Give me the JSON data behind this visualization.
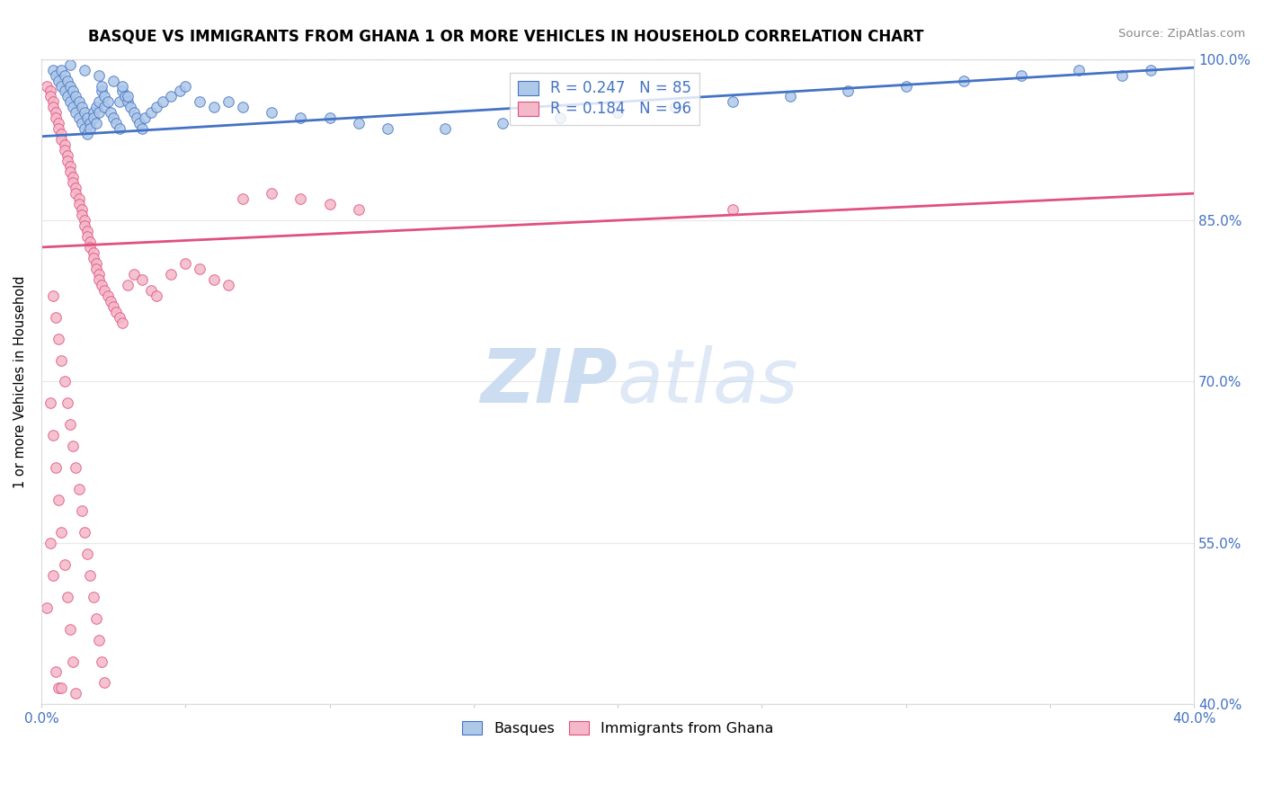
{
  "title": "BASQUE VS IMMIGRANTS FROM GHANA 1 OR MORE VEHICLES IN HOUSEHOLD CORRELATION CHART",
  "source": "Source: ZipAtlas.com",
  "ylabel": "1 or more Vehicles in Household",
  "xlim": [
    0.0,
    0.4
  ],
  "ylim": [
    0.4,
    1.0
  ],
  "xtick_vals": [
    0.0,
    0.05,
    0.1,
    0.15,
    0.2,
    0.25,
    0.3,
    0.35,
    0.4
  ],
  "xtick_labels": [
    "0.0%",
    "",
    "",
    "",
    "",
    "",
    "",
    "",
    "40.0%"
  ],
  "ytick_vals": [
    0.4,
    0.55,
    0.7,
    0.85,
    1.0
  ],
  "ytick_labels": [
    "40.0%",
    "55.0%",
    "70.0%",
    "85.0%",
    "100.0%"
  ],
  "blue_face_color": "#aec8e8",
  "blue_edge_color": "#4472C4",
  "pink_face_color": "#f4b8c8",
  "pink_edge_color": "#e05080",
  "blue_line_color": "#4472C4",
  "pink_line_color": "#e05080",
  "tick_color": "#4472C4",
  "grid_color": "#e8e8e8",
  "watermark_color": "#c8daf0",
  "legend_r1": "R = 0.247",
  "legend_n1": "N = 85",
  "legend_r2": "R = 0.184",
  "legend_n2": "N = 96",
  "blue_trend": [
    0.0,
    0.928,
    0.4,
    0.992
  ],
  "pink_trend": [
    0.0,
    0.825,
    0.4,
    0.875
  ],
  "blue_x": [
    0.004,
    0.005,
    0.006,
    0.007,
    0.007,
    0.008,
    0.008,
    0.009,
    0.009,
    0.01,
    0.01,
    0.011,
    0.011,
    0.012,
    0.012,
    0.013,
    0.013,
    0.014,
    0.014,
    0.015,
    0.015,
    0.016,
    0.016,
    0.017,
    0.017,
    0.018,
    0.018,
    0.019,
    0.019,
    0.02,
    0.02,
    0.021,
    0.021,
    0.022,
    0.022,
    0.023,
    0.024,
    0.025,
    0.026,
    0.027,
    0.027,
    0.028,
    0.028,
    0.029,
    0.03,
    0.031,
    0.032,
    0.033,
    0.034,
    0.035,
    0.036,
    0.038,
    0.04,
    0.042,
    0.045,
    0.048,
    0.05,
    0.055,
    0.06,
    0.065,
    0.07,
    0.08,
    0.09,
    0.1,
    0.11,
    0.12,
    0.14,
    0.16,
    0.18,
    0.2,
    0.22,
    0.24,
    0.26,
    0.28,
    0.3,
    0.32,
    0.34,
    0.36,
    0.375,
    0.385,
    0.01,
    0.015,
    0.02,
    0.025,
    0.03
  ],
  "blue_y": [
    0.99,
    0.985,
    0.98,
    0.99,
    0.975,
    0.985,
    0.97,
    0.98,
    0.965,
    0.975,
    0.96,
    0.97,
    0.955,
    0.965,
    0.95,
    0.96,
    0.945,
    0.955,
    0.94,
    0.95,
    0.935,
    0.945,
    0.93,
    0.94,
    0.935,
    0.95,
    0.945,
    0.955,
    0.94,
    0.95,
    0.96,
    0.97,
    0.975,
    0.965,
    0.955,
    0.96,
    0.95,
    0.945,
    0.94,
    0.935,
    0.96,
    0.97,
    0.975,
    0.965,
    0.96,
    0.955,
    0.95,
    0.945,
    0.94,
    0.935,
    0.945,
    0.95,
    0.955,
    0.96,
    0.965,
    0.97,
    0.975,
    0.96,
    0.955,
    0.96,
    0.955,
    0.95,
    0.945,
    0.945,
    0.94,
    0.935,
    0.935,
    0.94,
    0.945,
    0.95,
    0.955,
    0.96,
    0.965,
    0.97,
    0.975,
    0.98,
    0.985,
    0.99,
    0.985,
    0.99,
    0.995,
    0.99,
    0.985,
    0.98,
    0.965
  ],
  "pink_x": [
    0.002,
    0.003,
    0.003,
    0.004,
    0.004,
    0.005,
    0.005,
    0.006,
    0.006,
    0.007,
    0.007,
    0.008,
    0.008,
    0.009,
    0.009,
    0.01,
    0.01,
    0.011,
    0.011,
    0.012,
    0.012,
    0.013,
    0.013,
    0.014,
    0.014,
    0.015,
    0.015,
    0.016,
    0.016,
    0.017,
    0.017,
    0.018,
    0.018,
    0.019,
    0.019,
    0.02,
    0.02,
    0.021,
    0.022,
    0.023,
    0.024,
    0.025,
    0.026,
    0.027,
    0.028,
    0.03,
    0.032,
    0.035,
    0.038,
    0.04,
    0.045,
    0.05,
    0.055,
    0.06,
    0.065,
    0.07,
    0.08,
    0.09,
    0.1,
    0.11,
    0.004,
    0.005,
    0.006,
    0.007,
    0.008,
    0.009,
    0.01,
    0.011,
    0.012,
    0.013,
    0.014,
    0.015,
    0.016,
    0.017,
    0.018,
    0.019,
    0.02,
    0.021,
    0.022,
    0.003,
    0.004,
    0.005,
    0.006,
    0.007,
    0.008,
    0.009,
    0.01,
    0.011,
    0.012,
    0.24,
    0.002,
    0.003,
    0.004,
    0.005,
    0.006,
    0.007
  ],
  "pink_y": [
    0.975,
    0.97,
    0.965,
    0.96,
    0.955,
    0.95,
    0.945,
    0.94,
    0.935,
    0.93,
    0.925,
    0.92,
    0.915,
    0.91,
    0.905,
    0.9,
    0.895,
    0.89,
    0.885,
    0.88,
    0.875,
    0.87,
    0.865,
    0.86,
    0.855,
    0.85,
    0.845,
    0.84,
    0.835,
    0.83,
    0.825,
    0.82,
    0.815,
    0.81,
    0.805,
    0.8,
    0.795,
    0.79,
    0.785,
    0.78,
    0.775,
    0.77,
    0.765,
    0.76,
    0.755,
    0.79,
    0.8,
    0.795,
    0.785,
    0.78,
    0.8,
    0.81,
    0.805,
    0.795,
    0.79,
    0.87,
    0.875,
    0.87,
    0.865,
    0.86,
    0.78,
    0.76,
    0.74,
    0.72,
    0.7,
    0.68,
    0.66,
    0.64,
    0.62,
    0.6,
    0.58,
    0.56,
    0.54,
    0.52,
    0.5,
    0.48,
    0.46,
    0.44,
    0.42,
    0.68,
    0.65,
    0.62,
    0.59,
    0.56,
    0.53,
    0.5,
    0.47,
    0.44,
    0.41,
    0.86,
    0.49,
    0.55,
    0.52,
    0.43,
    0.415,
    0.415
  ]
}
